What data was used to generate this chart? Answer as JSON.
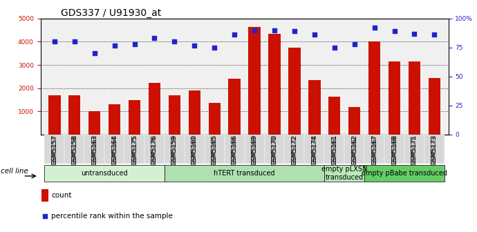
{
  "title": "GDS337 / U91930_at",
  "samples": [
    "GSM5157",
    "GSM5158",
    "GSM5163",
    "GSM5164",
    "GSM5175",
    "GSM5176",
    "GSM5159",
    "GSM5160",
    "GSM5165",
    "GSM5166",
    "GSM5169",
    "GSM5170",
    "GSM5172",
    "GSM5174",
    "GSM5161",
    "GSM5162",
    "GSM5167",
    "GSM5168",
    "GSM5171",
    "GSM5173"
  ],
  "counts": [
    1700,
    1700,
    1000,
    1300,
    1480,
    2230,
    1700,
    1900,
    1380,
    2400,
    4650,
    4350,
    3750,
    2340,
    1640,
    1200,
    4000,
    3150,
    3150,
    2450
  ],
  "percentile_pct": [
    80,
    80,
    70,
    77,
    78,
    83,
    80,
    77,
    75,
    86,
    90,
    90,
    89,
    86,
    75,
    78,
    92,
    89,
    87,
    86
  ],
  "bar_color": "#cc1100",
  "dot_color": "#2222cc",
  "ylim_left": [
    0,
    5000
  ],
  "yticks_left": [
    1000,
    2000,
    3000,
    4000,
    5000
  ],
  "ylim_right": [
    0,
    100
  ],
  "yticks_right": [
    0,
    25,
    50,
    75,
    100
  ],
  "groups": [
    {
      "label": "untransduced",
      "start": 0,
      "end": 6,
      "color": "#d4f0d4"
    },
    {
      "label": "hTERT transduced",
      "start": 6,
      "end": 14,
      "color": "#b0e0b0"
    },
    {
      "label": "empty pLXSN\ntransduced",
      "start": 14,
      "end": 16,
      "color": "#b8e8b8"
    },
    {
      "label": "empty pBabe transduced",
      "start": 16,
      "end": 20,
      "color": "#66cc66"
    }
  ],
  "cell_line_label": "cell line",
  "legend_count_label": "count",
  "legend_percentile_label": "percentile rank within the sample",
  "title_fontsize": 10,
  "tick_fontsize": 6.5,
  "label_fontsize": 7.5,
  "group_fontsize": 7
}
